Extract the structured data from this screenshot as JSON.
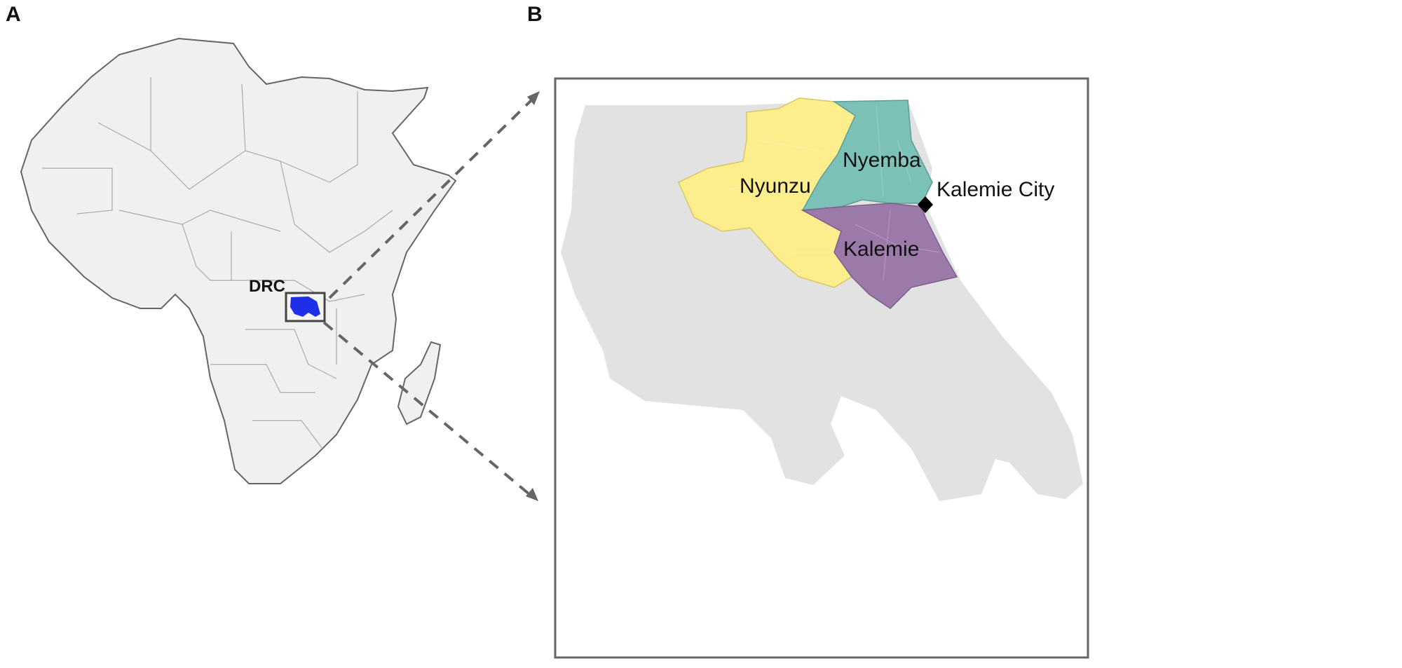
{
  "panels": {
    "a": {
      "label": "A",
      "country_label": "DRC"
    },
    "b": {
      "label": "B",
      "regions": [
        {
          "name": "Nyunzu",
          "color": "#fcee8c"
        },
        {
          "name": "Nyemba",
          "color": "#7bc1b8"
        },
        {
          "name": "Kalemie",
          "color": "#9b79a9"
        }
      ],
      "city": {
        "name": "Kalemie City",
        "marker": "diamond"
      }
    }
  },
  "colors": {
    "land": "#f0f0f0",
    "province_background": "#e2e2e2",
    "highlight": "#1f2ee8",
    "border": "#555555"
  }
}
